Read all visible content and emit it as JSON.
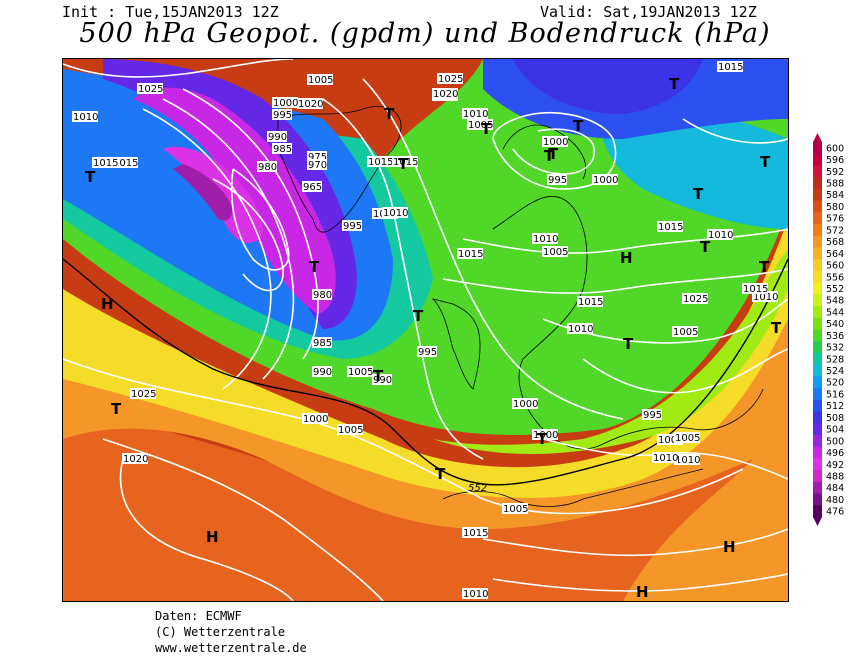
{
  "header": {
    "init": "Init : Tue,15JAN2013 12Z",
    "valid": "Valid: Sat,19JAN2013 12Z",
    "title": "500 hPa Geopot. (gpdm) und Bodendruck (hPa)"
  },
  "footer": {
    "line1": "Daten: ECMWF",
    "line2": "(C) Wetterzentrale",
    "line3": "www.wetterzentrale.de"
  },
  "scale": {
    "values": [
      "600",
      "596",
      "592",
      "588",
      "584",
      "580",
      "576",
      "572",
      "568",
      "564",
      "560",
      "556",
      "552",
      "548",
      "544",
      "540",
      "536",
      "532",
      "528",
      "524",
      "520",
      "516",
      "512",
      "508",
      "504",
      "500",
      "496",
      "492",
      "488",
      "484",
      "480",
      "476"
    ],
    "colors": [
      "#b4004b",
      "#c8003c",
      "#d2143c",
      "#be2d1e",
      "#c83c14",
      "#dc5014",
      "#e6641e",
      "#f07d19",
      "#f59628",
      "#faaf28",
      "#fac828",
      "#f5dc28",
      "#ebf01e",
      "#c8f01e",
      "#a0eb14",
      "#78e114",
      "#50d728",
      "#28cd50",
      "#14c8a0",
      "#14b9dc",
      "#149bf0",
      "#1e78f5",
      "#2d50f0",
      "#3c32e6",
      "#6428e6",
      "#9628e1",
      "#c828e6",
      "#dc32e6",
      "#d228c8",
      "#a01eaa",
      "#780f8c",
      "#5a0064"
    ]
  },
  "pressure_labels": [
    "1025",
    "1005",
    "1025",
    "1020",
    "1010",
    "1010",
    "1005",
    "1015",
    "1000",
    "995",
    "990",
    "985",
    "980",
    "975",
    "970",
    "965",
    "1015",
    "1015",
    "995",
    "1010",
    "1000",
    "995",
    "1005",
    "1015",
    "1010",
    "1015",
    "1020",
    "1015",
    "1010",
    "1015",
    "1010",
    "1005",
    "1000",
    "995",
    "990",
    "985",
    "1025",
    "1000",
    "1005",
    "1000",
    "995",
    "990",
    "980",
    "1000",
    "1005",
    "1010",
    "1005",
    "1015",
    "1010",
    "1010",
    "1015",
    "1025",
    "1020",
    "1020",
    "1015",
    "1010",
    "1005",
    "1000",
    "1010"
  ],
  "gpdm_label": "552",
  "highs_lows": {
    "H": "H",
    "T": "T"
  }
}
